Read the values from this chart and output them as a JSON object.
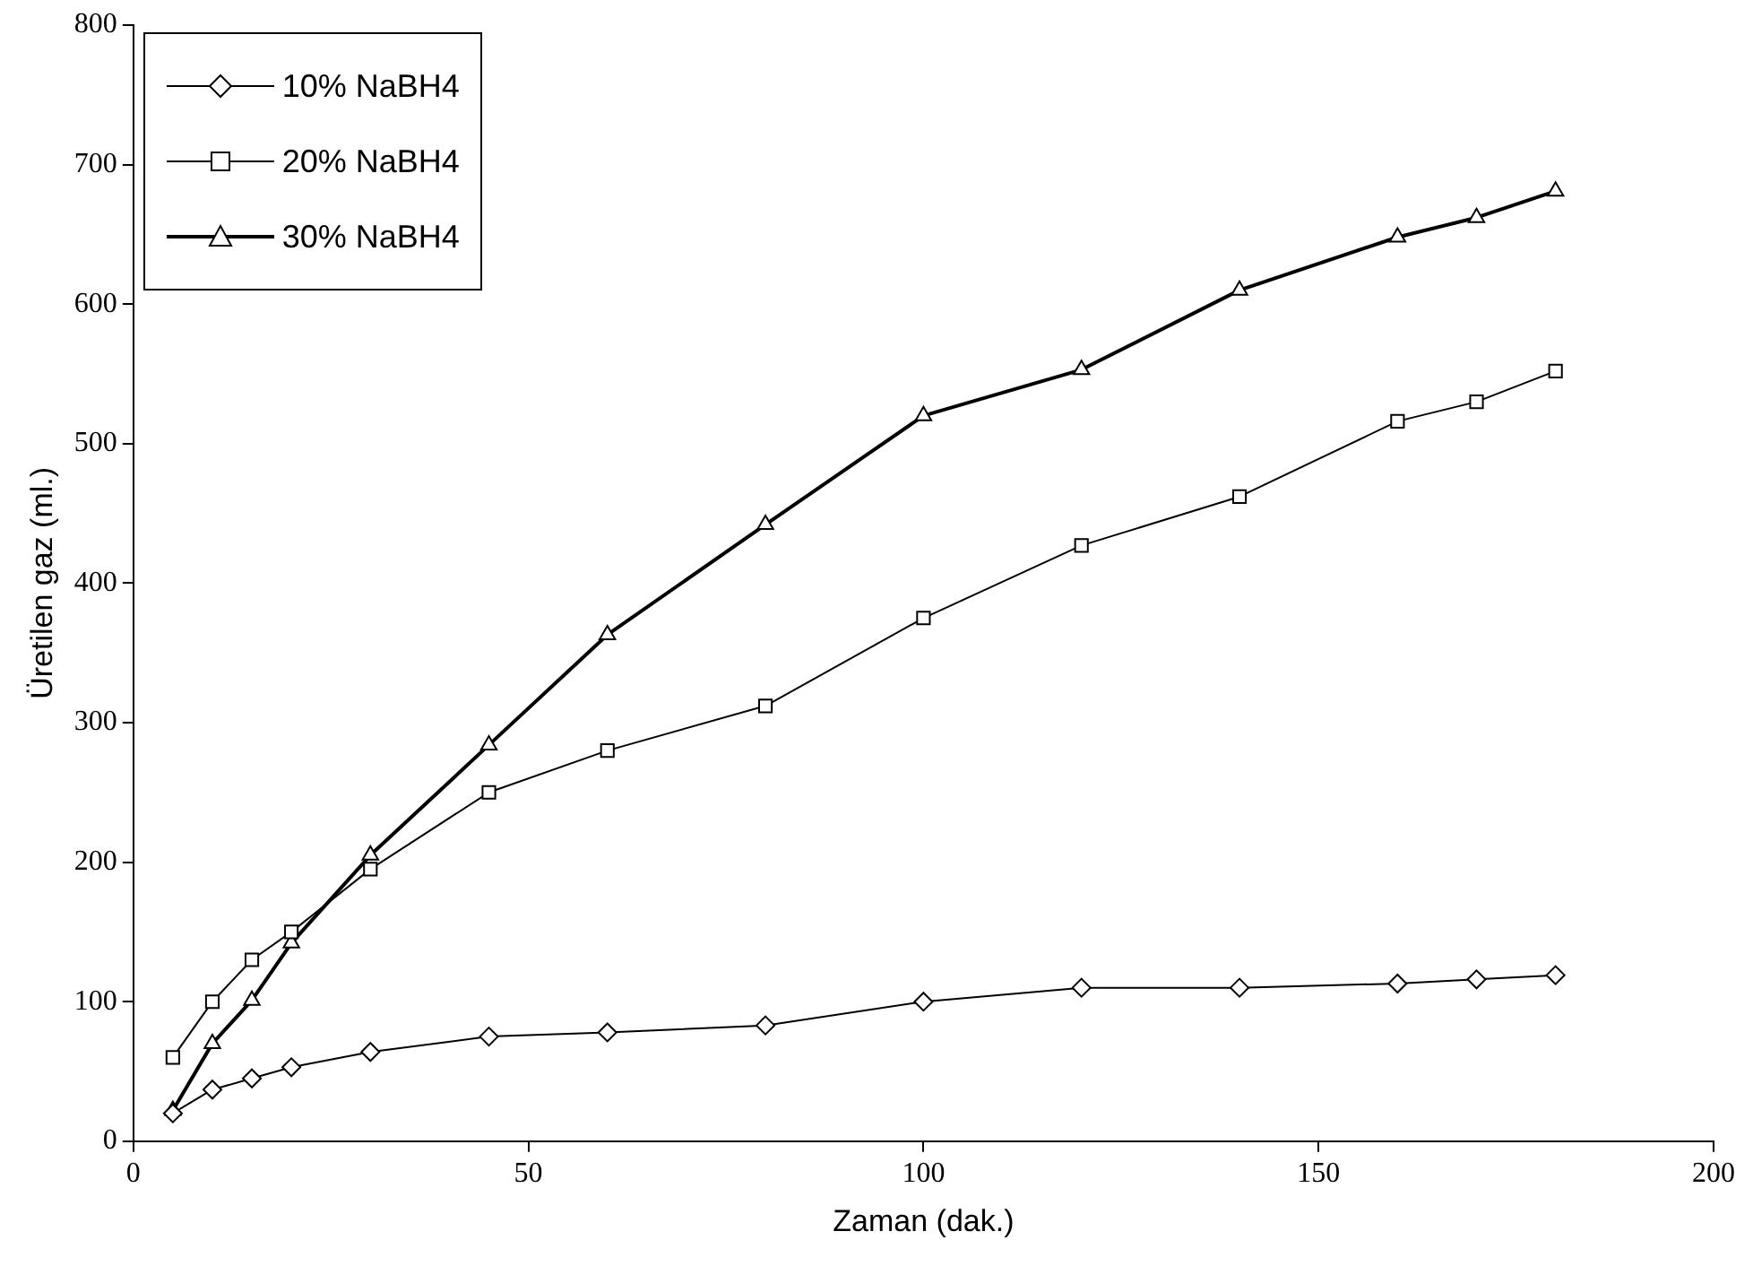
{
  "chart_data": {
    "type": "line",
    "xlabel": "Zaman (dak.)",
    "ylabel": "Üretilen gaz (ml.)",
    "xlim": [
      0,
      200
    ],
    "xticks": [
      0,
      50,
      100,
      150,
      200
    ],
    "ylim": [
      0,
      800
    ],
    "yticks": [
      0,
      100,
      200,
      300,
      400,
      500,
      600,
      700,
      800
    ],
    "grid": false,
    "legend": "top left",
    "series": [
      {
        "name": "10% NaBH4",
        "color": "#000000",
        "marker": "diamond",
        "x": [
          5,
          10,
          15,
          20,
          30,
          45,
          60,
          80,
          100,
          120,
          140,
          160,
          170,
          180
        ],
        "values": [
          20,
          37,
          45,
          53,
          64,
          75,
          78,
          83,
          100,
          110,
          110,
          113,
          116,
          119
        ]
      },
      {
        "name": "20% NaBH4",
        "color": "#000000",
        "marker": "square",
        "x": [
          5,
          10,
          15,
          20,
          30,
          45,
          60,
          80,
          100,
          120,
          140,
          160,
          170,
          180
        ],
        "values": [
          60,
          100,
          130,
          150,
          195,
          250,
          280,
          312,
          375,
          427,
          462,
          516,
          530,
          552
        ]
      },
      {
        "name": "30% NaBH4",
        "color": "#000000",
        "marker": "triangle",
        "x": [
          5,
          10,
          15,
          20,
          30,
          45,
          60,
          80,
          100,
          120,
          140,
          160,
          170,
          180
        ],
        "values": [
          22,
          70,
          101,
          142,
          205,
          284,
          363,
          442,
          520,
          553,
          610,
          648,
          662,
          681
        ]
      }
    ]
  }
}
